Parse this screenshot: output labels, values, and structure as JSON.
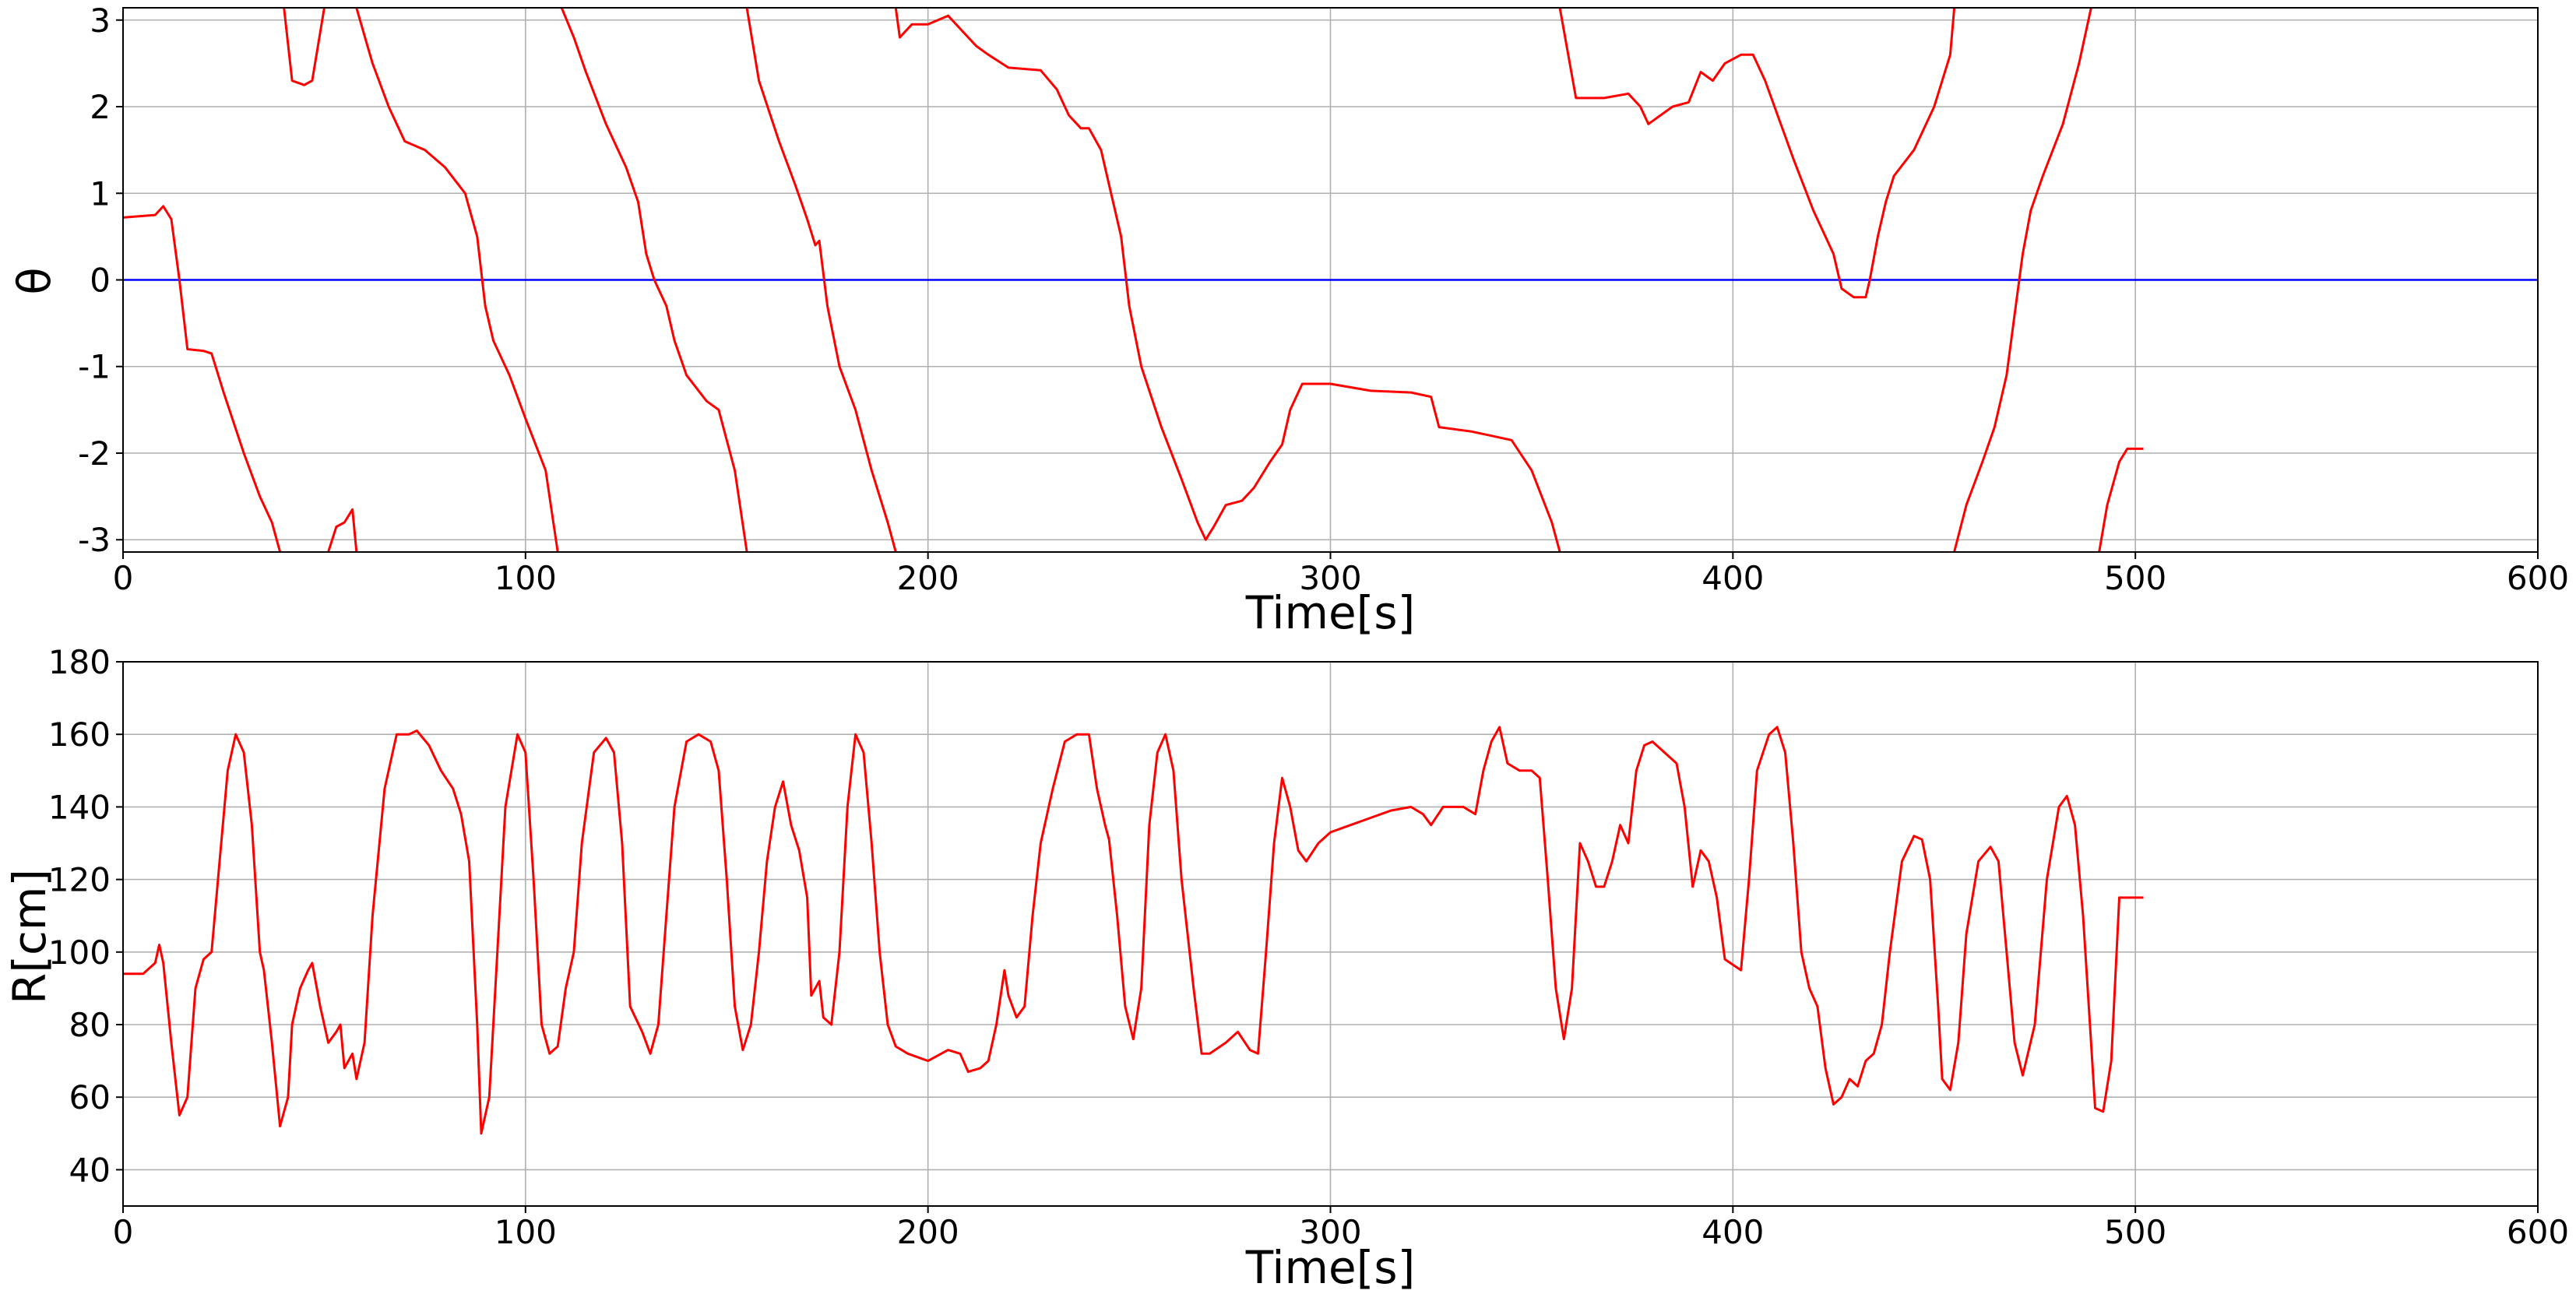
{
  "chart_data": [
    {
      "type": "line",
      "xlabel": "Time[s]",
      "ylabel": "θ",
      "grid": true,
      "color": "#ff0000",
      "reference_line": {
        "value": 0,
        "color": "#0000ff"
      },
      "xlim": [
        0,
        600
      ],
      "xticks": [
        0,
        100,
        200,
        300,
        400,
        500,
        600
      ],
      "ylim": [
        -3.1416,
        3.1416
      ],
      "yticks": [
        -3,
        -2,
        -1,
        0,
        1,
        2,
        3
      ],
      "x": [
        0,
        8,
        10,
        12,
        14,
        16,
        20,
        22,
        25,
        30,
        34,
        37,
        39,
        40,
        40,
        42,
        45,
        47,
        50,
        50,
        51,
        53,
        55,
        57,
        58,
        58,
        58,
        62,
        66,
        70,
        75,
        80,
        85,
        88,
        90,
        92,
        96,
        100,
        105,
        108,
        108,
        109,
        112,
        115,
        120,
        125,
        128,
        130,
        132,
        135,
        137,
        140,
        145,
        148,
        152,
        155,
        155,
        155,
        158,
        163,
        167,
        170,
        172,
        173,
        175,
        178,
        182,
        186,
        190,
        192,
        192,
        192,
        193,
        196,
        200,
        205,
        208,
        212,
        215,
        220,
        228,
        232,
        235,
        238,
        240,
        243,
        245,
        248,
        250,
        253,
        258,
        263,
        267,
        269,
        271,
        274,
        278,
        281,
        285,
        288,
        290,
        293,
        300,
        310,
        320,
        325,
        327,
        335,
        340,
        345,
        350,
        355,
        357,
        357,
        357,
        361,
        368,
        374,
        377,
        379,
        385,
        389,
        392,
        395,
        398,
        402,
        405,
        408,
        415,
        420,
        423,
        425,
        427,
        430,
        433,
        434,
        436,
        438,
        440,
        445,
        450,
        454,
        455,
        455,
        455,
        458,
        462,
        465,
        468,
        470,
        472,
        474,
        477,
        482,
        486,
        489,
        490,
        491,
        493,
        496,
        498,
        502
      ],
      "values": [
        0.72,
        0.75,
        0.85,
        0.7,
        0,
        -0.8,
        -0.82,
        -0.85,
        -1.3,
        -2.0,
        -2.5,
        -2.8,
        -3.14,
        null,
        3.14,
        2.3,
        2.25,
        2.3,
        3.14,
        null,
        -3.14,
        -2.85,
        -2.8,
        -2.65,
        -3.14,
        null,
        3.14,
        2.5,
        2.0,
        1.6,
        1.5,
        1.3,
        1.0,
        0.5,
        -0.3,
        -0.7,
        -1.1,
        -1.6,
        -2.2,
        -3.14,
        null,
        3.14,
        2.8,
        2.4,
        1.8,
        1.3,
        0.9,
        0.3,
        0,
        -0.3,
        -0.7,
        -1.1,
        -1.4,
        -1.5,
        -2.2,
        -3.14,
        null,
        3.14,
        2.3,
        1.6,
        1.1,
        0.7,
        0.4,
        0.45,
        -0.3,
        -1.0,
        -1.5,
        -2.2,
        -2.8,
        -3.14,
        null,
        3.14,
        2.8,
        2.95,
        2.95,
        3.05,
        2.9,
        2.7,
        2.6,
        2.45,
        2.42,
        2.2,
        1.9,
        1.75,
        1.75,
        1.5,
        1.1,
        0.5,
        -0.3,
        -1.0,
        -1.7,
        -2.3,
        -2.8,
        -3.0,
        -2.85,
        -2.6,
        -2.55,
        -2.4,
        -2.1,
        -1.9,
        -1.5,
        -1.2,
        -1.2,
        -1.28,
        -1.3,
        -1.35,
        -1.7,
        -1.75,
        -1.8,
        -1.85,
        -2.2,
        -2.8,
        -3.14,
        null,
        3.14,
        2.1,
        2.1,
        2.15,
        2.0,
        1.8,
        2.0,
        2.05,
        2.4,
        2.3,
        2.5,
        2.6,
        2.6,
        2.3,
        1.4,
        0.8,
        0.5,
        0.3,
        -0.1,
        -0.2,
        -0.2,
        0,
        0.5,
        0.9,
        1.2,
        1.5,
        2.0,
        2.6,
        3.14,
        null,
        -3.14,
        -2.6,
        -2.1,
        -1.7,
        -1.1,
        -0.4,
        0.3,
        0.8,
        1.2,
        1.8,
        2.5,
        3.14,
        null,
        -3.14,
        -2.6,
        -2.1,
        -1.95,
        -1.95
      ]
    },
    {
      "type": "line",
      "xlabel": "Time[s]",
      "ylabel": "R[cm]",
      "grid": true,
      "color": "#ff0000",
      "xlim": [
        0,
        600
      ],
      "xticks": [
        0,
        100,
        200,
        300,
        400,
        500,
        600
      ],
      "ylim": [
        30,
        180
      ],
      "yticks": [
        40,
        60,
        80,
        100,
        120,
        140,
        160,
        180
      ],
      "x": [
        0,
        5,
        8,
        9,
        10,
        12,
        14,
        16,
        18,
        20,
        22,
        24,
        26,
        28,
        30,
        32,
        34,
        35,
        37,
        39,
        41,
        42,
        43,
        44,
        46,
        47,
        49,
        51,
        53,
        54,
        55,
        57,
        58,
        60,
        62,
        65,
        68,
        71,
        73,
        76,
        79,
        82,
        84,
        86,
        88,
        89,
        91,
        93,
        95,
        98,
        100,
        102,
        104,
        106,
        108,
        110,
        112,
        114,
        117,
        120,
        122,
        124,
        126,
        129,
        131,
        133,
        135,
        137,
        140,
        143,
        146,
        148,
        150,
        152,
        154,
        156,
        158,
        160,
        162,
        164,
        166,
        168,
        170,
        171,
        173,
        174,
        176,
        178,
        180,
        182,
        184,
        186,
        188,
        190,
        192,
        195,
        200,
        205,
        208,
        210,
        213,
        215,
        217,
        219,
        220,
        222,
        224,
        226,
        228,
        231,
        234,
        237,
        240,
        242,
        244,
        245,
        247,
        249,
        251,
        253,
        255,
        257,
        259,
        261,
        263,
        266,
        268,
        270,
        274,
        277,
        280,
        282,
        284,
        286,
        288,
        290,
        292,
        294,
        297,
        300,
        305,
        310,
        315,
        320,
        323,
        325,
        328,
        333,
        336,
        338,
        340,
        342,
        344,
        347,
        350,
        352,
        354,
        356,
        358,
        360,
        362,
        364,
        366,
        368,
        370,
        372,
        374,
        376,
        378,
        380,
        383,
        386,
        388,
        390,
        392,
        394,
        396,
        398,
        402,
        404,
        406,
        409,
        411,
        413,
        415,
        417,
        419,
        421,
        423,
        425,
        427,
        429,
        431,
        433,
        435,
        437,
        439,
        442,
        445,
        447,
        449,
        451,
        452,
        454,
        456,
        458,
        461,
        464,
        466,
        468,
        470,
        472,
        475,
        478,
        481,
        483,
        485,
        487,
        489,
        490,
        492,
        494,
        496,
        500,
        502
      ],
      "values": [
        94,
        94,
        97,
        102,
        97,
        75,
        55,
        60,
        90,
        98,
        100,
        125,
        150,
        160,
        155,
        135,
        100,
        95,
        75,
        52,
        60,
        80,
        85,
        90,
        95,
        97,
        85,
        75,
        78,
        80,
        68,
        72,
        65,
        75,
        110,
        145,
        160,
        160,
        161,
        157,
        150,
        145,
        138,
        125,
        80,
        50,
        60,
        100,
        140,
        160,
        155,
        120,
        80,
        72,
        74,
        90,
        100,
        130,
        155,
        159,
        155,
        130,
        85,
        78,
        72,
        80,
        110,
        140,
        158,
        160,
        158,
        150,
        120,
        85,
        73,
        80,
        100,
        125,
        140,
        147,
        135,
        128,
        115,
        88,
        92,
        82,
        80,
        100,
        140,
        160,
        155,
        130,
        100,
        80,
        74,
        72,
        70,
        73,
        72,
        67,
        68,
        70,
        80,
        95,
        88,
        82,
        85,
        110,
        130,
        145,
        158,
        160,
        160,
        145,
        135,
        131,
        110,
        85,
        76,
        90,
        135,
        155,
        160,
        150,
        120,
        90,
        72,
        72,
        75,
        78,
        73,
        72,
        100,
        130,
        148,
        140,
        128,
        125,
        130,
        133,
        135,
        137,
        139,
        140,
        138,
        135,
        140,
        140,
        138,
        150,
        158,
        162,
        152,
        150,
        150,
        148,
        120,
        90,
        76,
        90,
        130,
        125,
        118,
        118,
        125,
        135,
        130,
        150,
        157,
        158,
        155,
        152,
        140,
        118,
        128,
        125,
        115,
        98,
        95,
        120,
        150,
        160,
        162,
        155,
        130,
        100,
        90,
        85,
        68,
        58,
        60,
        65,
        63,
        70,
        72,
        80,
        100,
        125,
        132,
        131,
        120,
        85,
        65,
        62,
        75,
        105,
        125,
        129,
        125,
        100,
        75,
        66,
        80,
        120,
        140,
        143,
        135,
        110,
        75,
        57,
        56,
        70,
        115,
        115,
        115
      ]
    }
  ]
}
